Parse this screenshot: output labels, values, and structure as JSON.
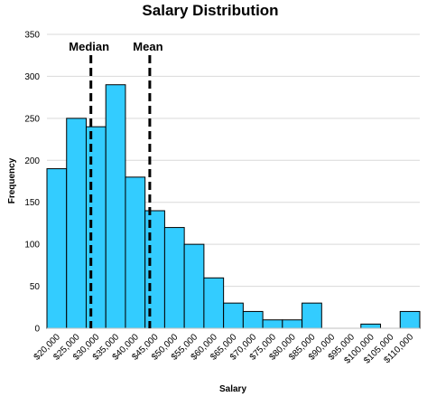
{
  "chart_data": {
    "type": "bar",
    "title": "Salary Distribution",
    "xlabel": "Salary",
    "ylabel": "Frequency",
    "ylim": [
      0,
      350
    ],
    "yticks": [
      0,
      50,
      100,
      150,
      200,
      250,
      300,
      350
    ],
    "grid": true,
    "bar_color": "#33ccff",
    "bar_edge_color": "#000000",
    "categories": [
      "$20,000",
      "$25,000",
      "$30,000",
      "$35,000",
      "$40,000",
      "$45,000",
      "$50,000",
      "$55,000",
      "$60,000",
      "$65,000",
      "$70,000",
      "$75,000",
      "$80,000",
      "$85,000",
      "$90,000",
      "$95,000",
      "$100,000",
      "$105,000",
      "$110,000"
    ],
    "values": [
      190,
      250,
      240,
      290,
      180,
      140,
      120,
      100,
      60,
      30,
      20,
      10,
      10,
      30,
      0,
      0,
      5,
      0,
      20
    ],
    "annotations": [
      {
        "label": "Median",
        "x_value": 31200,
        "style": "dashed"
      },
      {
        "label": "Mean",
        "x_value": 46200,
        "style": "dashed"
      }
    ]
  }
}
